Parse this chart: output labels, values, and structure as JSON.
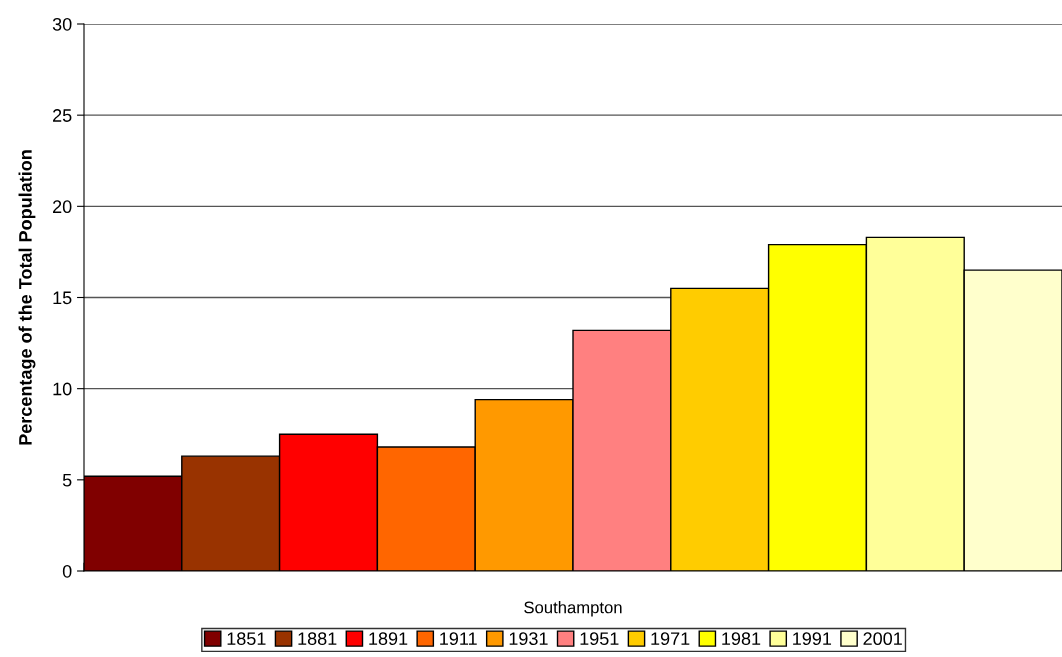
{
  "chart_data": {
    "type": "bar",
    "ylabel": "Percentage of the Total Population",
    "categories": [
      "Southampton"
    ],
    "series": [
      {
        "name": "1851",
        "color": "#800000",
        "values": [
          5.2
        ]
      },
      {
        "name": "1881",
        "color": "#993300",
        "values": [
          6.3
        ]
      },
      {
        "name": "1891",
        "color": "#ff0000",
        "values": [
          7.5
        ]
      },
      {
        "name": "1911",
        "color": "#ff6600",
        "values": [
          6.8
        ]
      },
      {
        "name": "1931",
        "color": "#ff9900",
        "values": [
          9.4
        ]
      },
      {
        "name": "1951",
        "color": "#ff8080",
        "values": [
          13.2
        ]
      },
      {
        "name": "1971",
        "color": "#ffcc00",
        "values": [
          15.5
        ]
      },
      {
        "name": "1981",
        "color": "#ffff00",
        "values": [
          17.9
        ]
      },
      {
        "name": "1991",
        "color": "#ffff99",
        "values": [
          18.3
        ]
      },
      {
        "name": "2001",
        "color": "#ffffcc",
        "values": [
          16.5
        ]
      }
    ],
    "ylim": [
      0,
      30
    ],
    "yticks": [
      0,
      5,
      10,
      15,
      20,
      25,
      30
    ],
    "grid": "y",
    "legend": "bottom"
  }
}
